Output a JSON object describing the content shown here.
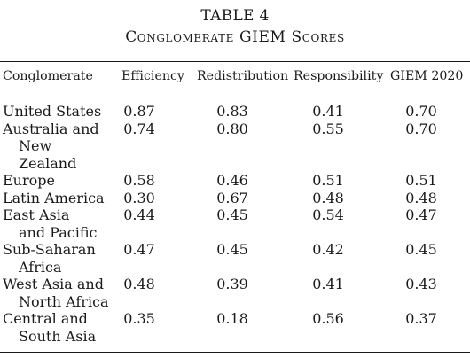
{
  "table": {
    "number": "TABLE 4",
    "caption": "Conglomerate GIEM Scores",
    "columns": [
      "Conglomerate",
      "Efficiency",
      "Redistribution",
      "Responsibility",
      "GIEM 2020"
    ],
    "rows": [
      {
        "name_lines": [
          "United States"
        ],
        "values": [
          "0.87",
          "0.83",
          "0.41",
          "0.70"
        ]
      },
      {
        "name_lines": [
          "Australia and",
          "New Zealand"
        ],
        "values": [
          "0.74",
          "0.80",
          "0.55",
          "0.70"
        ]
      },
      {
        "name_lines": [
          "Europe"
        ],
        "values": [
          "0.58",
          "0.46",
          "0.51",
          "0.51"
        ]
      },
      {
        "name_lines": [
          "Latin America"
        ],
        "values": [
          "0.30",
          "0.67",
          "0.48",
          "0.48"
        ]
      },
      {
        "name_lines": [
          "East Asia",
          "and Pacific"
        ],
        "values": [
          "0.44",
          "0.45",
          "0.54",
          "0.47"
        ]
      },
      {
        "name_lines": [
          "Sub-Saharan",
          "Africa"
        ],
        "values": [
          "0.47",
          "0.45",
          "0.42",
          "0.45"
        ]
      },
      {
        "name_lines": [
          "West Asia and",
          "North Africa"
        ],
        "values": [
          "0.48",
          "0.39",
          "0.41",
          "0.43"
        ]
      },
      {
        "name_lines": [
          "Central and",
          "South Asia"
        ],
        "values": [
          "0.35",
          "0.18",
          "0.56",
          "0.37"
        ]
      }
    ]
  }
}
